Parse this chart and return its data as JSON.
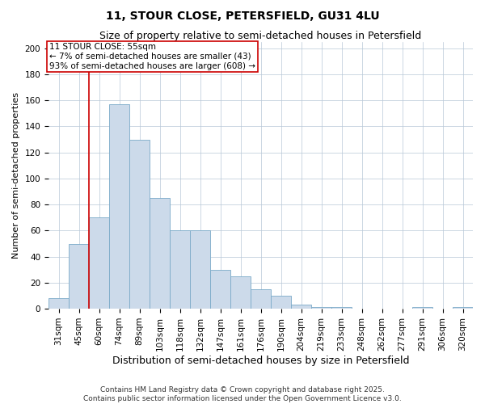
{
  "title": "11, STOUR CLOSE, PETERSFIELD, GU31 4LU",
  "subtitle": "Size of property relative to semi-detached houses in Petersfield",
  "xlabel": "Distribution of semi-detached houses by size in Petersfield",
  "ylabel": "Number of semi-detached properties",
  "footer_line1": "Contains HM Land Registry data © Crown copyright and database right 2025.",
  "footer_line2": "Contains public sector information licensed under the Open Government Licence v3.0.",
  "bar_color": "#ccdaea",
  "bar_edge_color": "#7aaac8",
  "property_line_color": "#cc0000",
  "annotation_box_edge_color": "#cc0000",
  "background_color": "#ffffff",
  "grid_color": "#b8c8d8",
  "bin_labels": [
    "31sqm",
    "45sqm",
    "60sqm",
    "74sqm",
    "89sqm",
    "103sqm",
    "118sqm",
    "132sqm",
    "147sqm",
    "161sqm",
    "176sqm",
    "190sqm",
    "204sqm",
    "219sqm",
    "233sqm",
    "248sqm",
    "262sqm",
    "277sqm",
    "291sqm",
    "306sqm",
    "320sqm"
  ],
  "bin_counts": [
    8,
    50,
    70,
    157,
    130,
    85,
    60,
    60,
    30,
    25,
    15,
    10,
    3,
    1,
    1,
    0,
    0,
    0,
    1,
    0,
    1
  ],
  "property_line_x": 1.5,
  "property_label": "11 STOUR CLOSE: 55sqm",
  "annotation_line1": "← 7% of semi-detached houses are smaller (43)",
  "annotation_line2": "93% of semi-detached houses are larger (608) →",
  "ylim": [
    0,
    205
  ],
  "yticks": [
    0,
    20,
    40,
    60,
    80,
    100,
    120,
    140,
    160,
    180,
    200
  ],
  "title_fontsize": 10,
  "subtitle_fontsize": 9,
  "xlabel_fontsize": 9,
  "ylabel_fontsize": 8,
  "tick_fontsize": 7.5,
  "annotation_fontsize": 7.5,
  "footer_fontsize": 6.5
}
